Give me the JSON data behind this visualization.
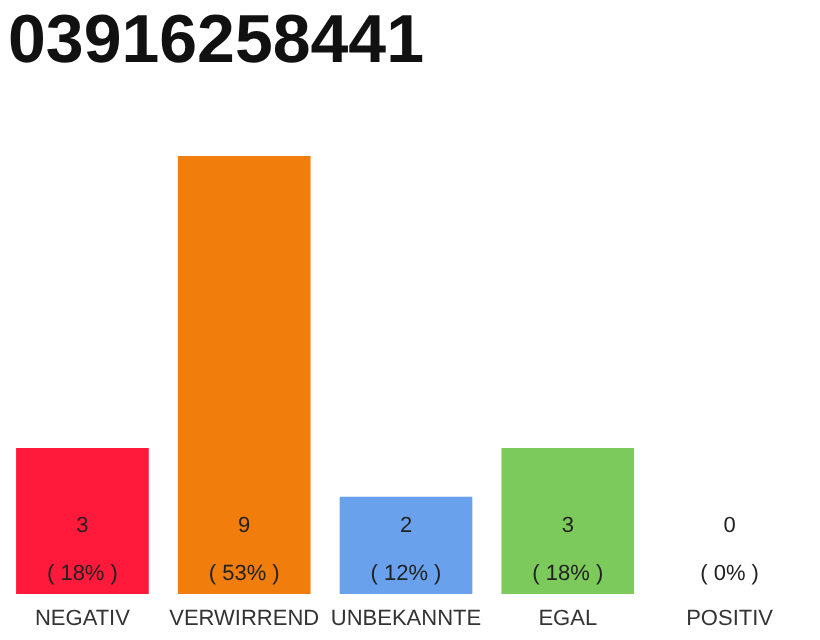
{
  "chart_data": {
    "type": "bar",
    "title": "03916258441",
    "categories": [
      "NEGATIV",
      "VERWIRREND",
      "UNBEKANNTE",
      "EGAL",
      "POSITIV"
    ],
    "values": [
      3,
      9,
      2,
      3,
      0
    ],
    "colors": [
      "#ff1a3c",
      "#f07d0c",
      "#6aa1ec",
      "#7dca5c",
      "#e0e0e0"
    ],
    "value_labels": [
      "3\n( 18% )",
      "9\n( 53% )",
      "2\n( 12% )",
      "3\n( 18% )",
      "0\n( 0% )"
    ],
    "tick_labels": "x",
    "grid": false,
    "legend": false
  }
}
